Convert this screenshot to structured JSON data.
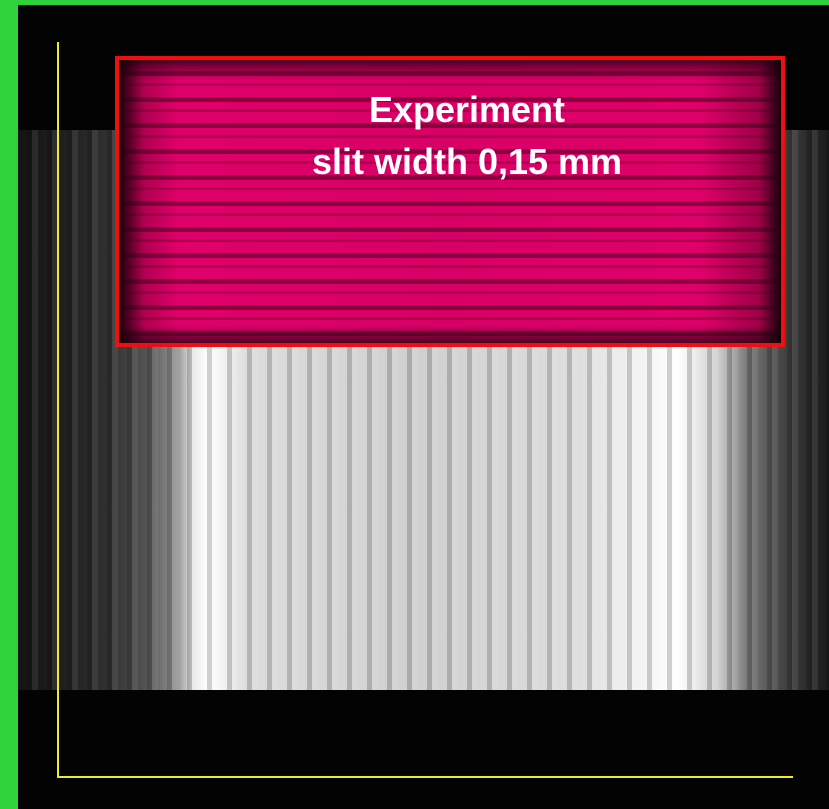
{
  "overlay": {
    "title": "Experiment",
    "subtitle": "slit width 0,15 mm"
  }
}
